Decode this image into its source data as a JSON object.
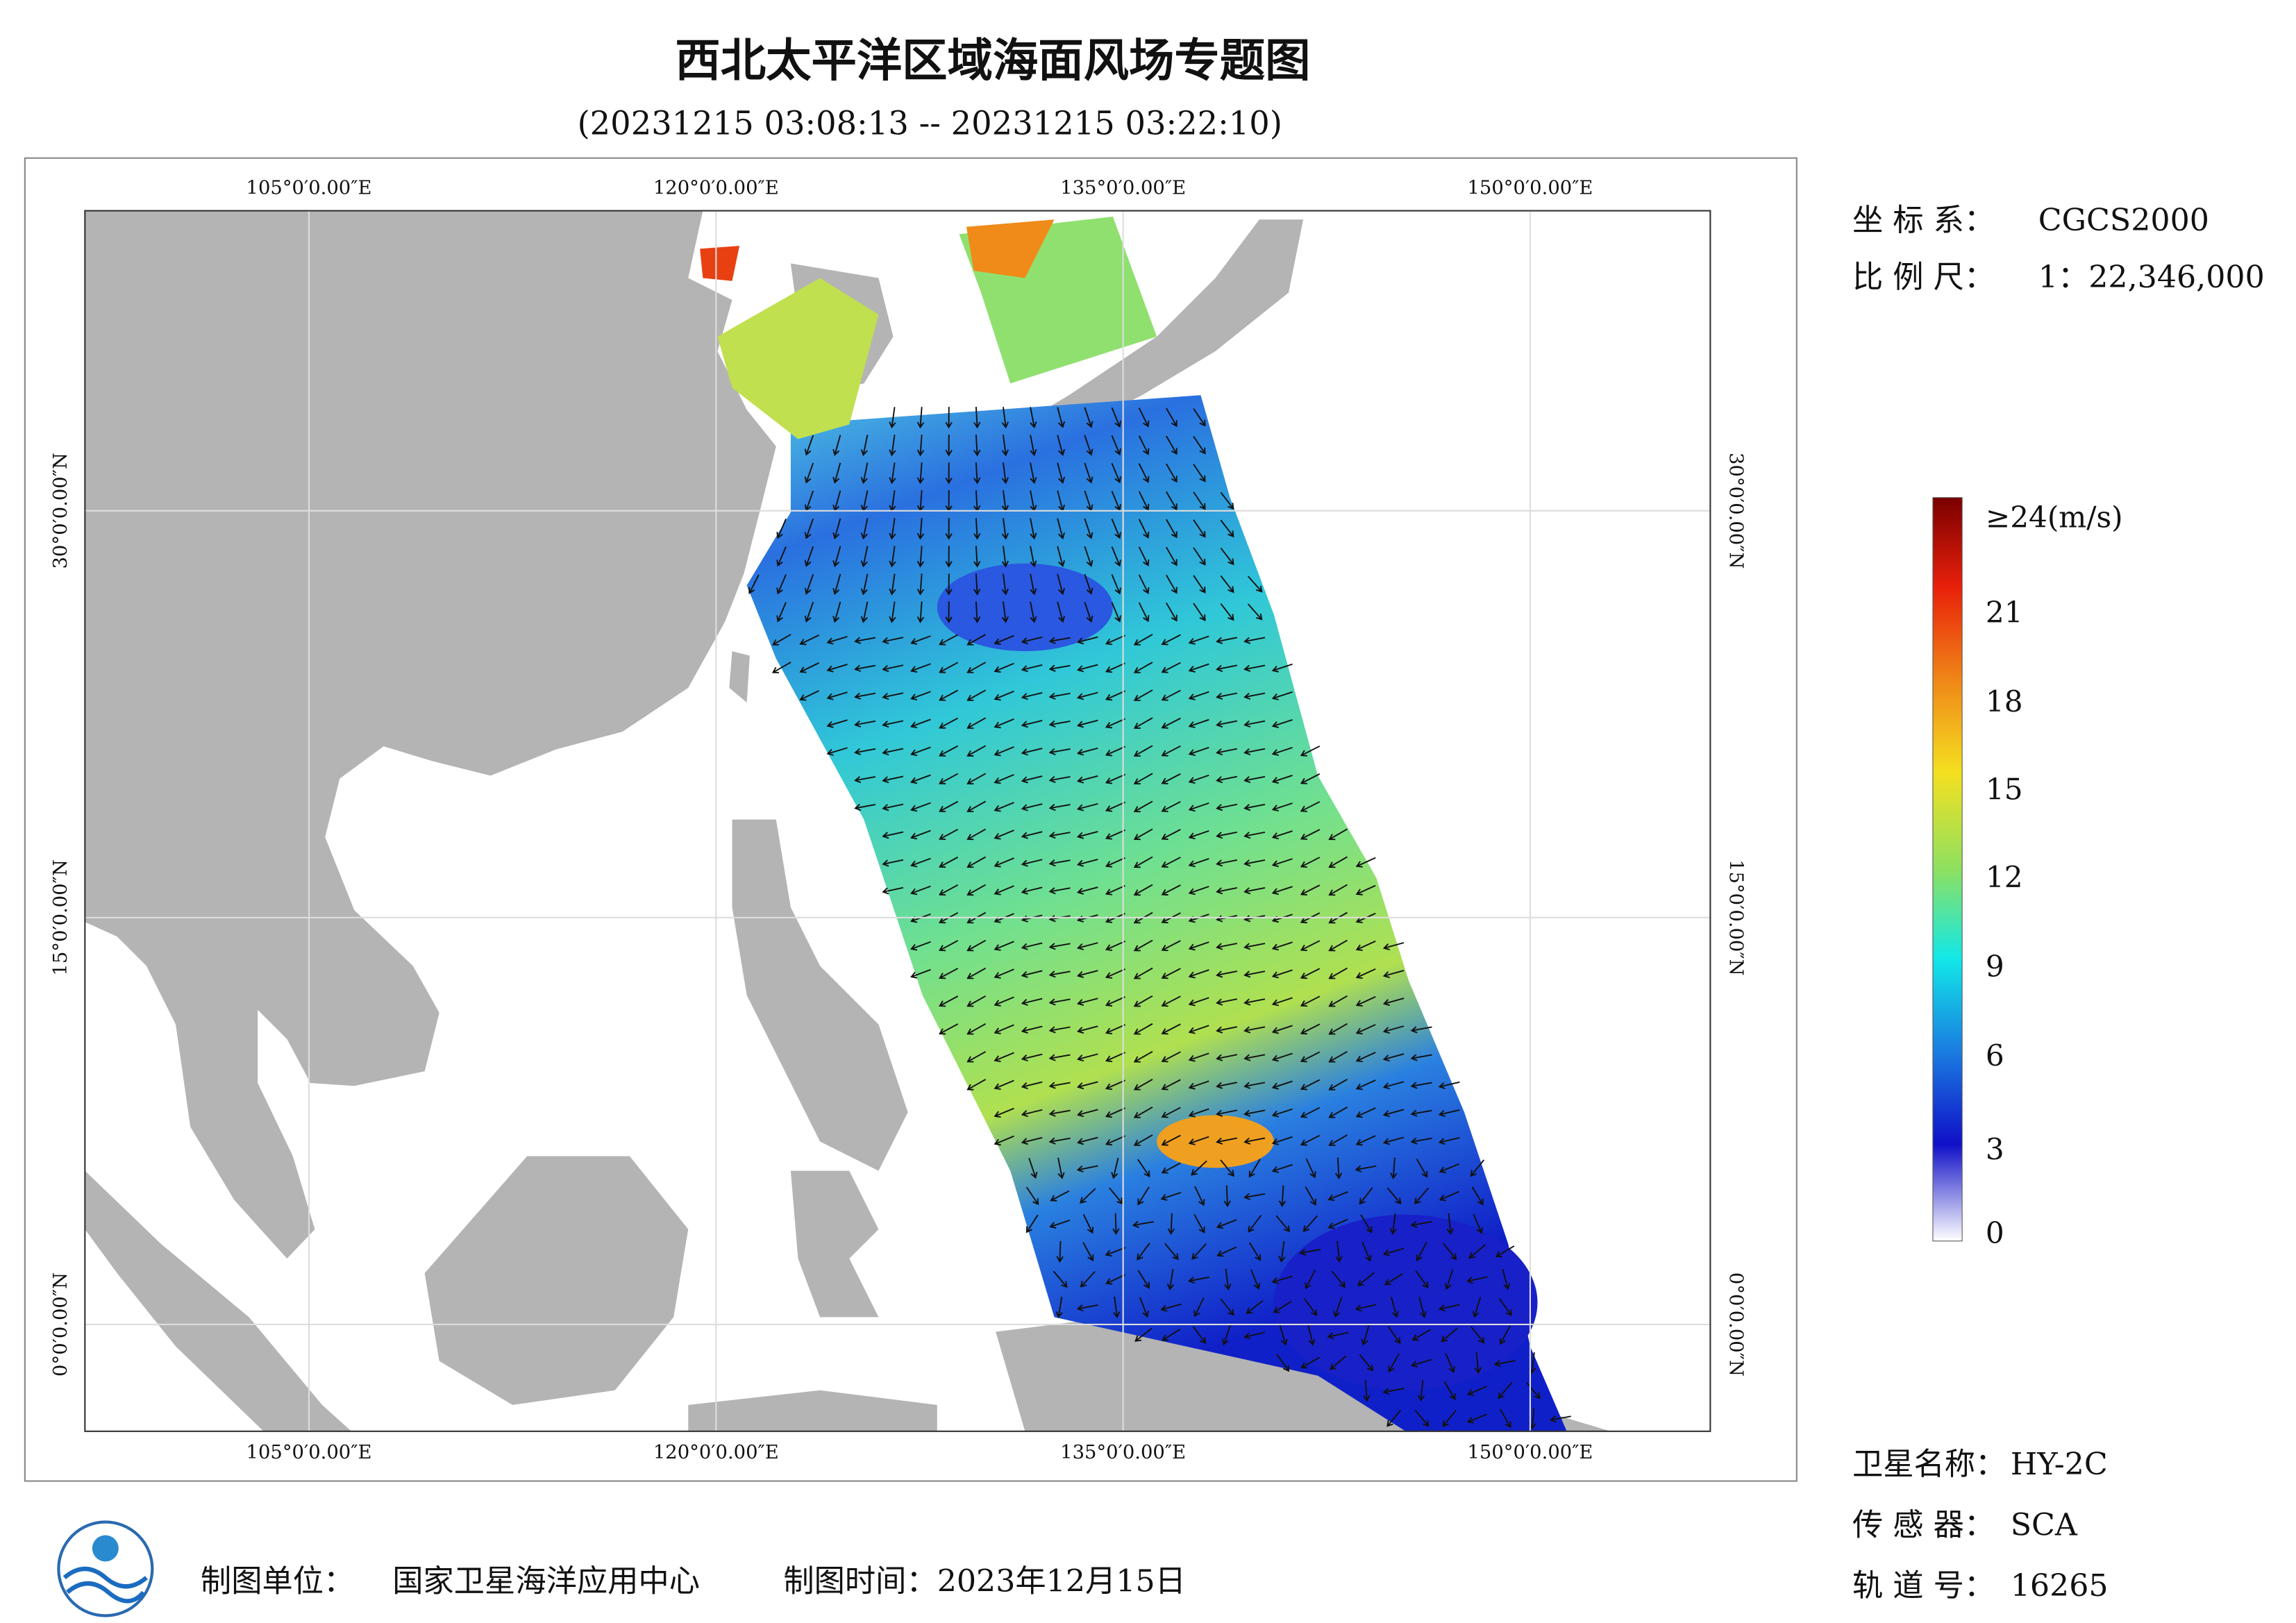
{
  "header": {
    "title": "西北太平洋区域海面风场专题图",
    "time_range": "(20231215 03:08:13 -- 20231215 03:22:10)"
  },
  "map": {
    "lon_labels": [
      "105°0′0.00″E",
      "120°0′0.00″E",
      "135°0′0.00″E",
      "150°0′0.00″E"
    ],
    "lat_labels": [
      "30°0′0.00″N",
      "15°0′0.00″N",
      "0°0′0.00″N"
    ]
  },
  "info": {
    "coord_label": "坐 标 系：",
    "coord": "CGCS2000",
    "scale_label": "比 例 尺：",
    "scale": "1：22,346,000"
  },
  "legend": {
    "labels": [
      "≥24(m/s)",
      "21",
      "18",
      "15",
      "12",
      "9",
      "6",
      "3",
      "0"
    ]
  },
  "satellite": [
    {
      "label": "卫星名称：",
      "value": "HY-2C"
    },
    {
      "label": "传 感 器：",
      "value": "SCA"
    },
    {
      "label": "轨 道 号：",
      "value": "16265"
    }
  ],
  "footer": {
    "unit_label": "制图单位：",
    "unit": "国家卫星海洋应用中心",
    "time": "制图时间：2023年12月15日"
  }
}
